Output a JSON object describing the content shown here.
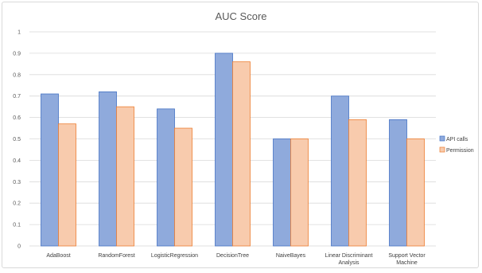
{
  "chart_data": {
    "type": "bar",
    "title": "AUC Score",
    "xlabel": "",
    "ylabel": "",
    "ylim": [
      0,
      1
    ],
    "yticks": [
      "0",
      "0.1",
      "0.2",
      "0.3",
      "0.4",
      "0.5",
      "0.6",
      "0.7",
      "0.8",
      "0.9",
      "1"
    ],
    "grid": true,
    "legend_position": "right",
    "categories": [
      [
        "AdaBoost"
      ],
      [
        "RandomForest"
      ],
      [
        "LogisticRegression"
      ],
      [
        "DecisionTree"
      ],
      [
        "NaiveBayes"
      ],
      [
        "Linear Discriminant",
        "Analysis"
      ],
      [
        "Support Vector",
        "Machine"
      ]
    ],
    "series": [
      {
        "name": "API calls",
        "color": "#8faadc",
        "stroke": "#4472c4",
        "values": [
          0.71,
          0.72,
          0.64,
          0.9,
          0.5,
          0.7,
          0.59
        ]
      },
      {
        "name": "Permission",
        "color": "#f8cbad",
        "stroke": "#ed7d31",
        "values": [
          0.57,
          0.65,
          0.55,
          0.86,
          0.5,
          0.59,
          0.5
        ]
      }
    ]
  }
}
